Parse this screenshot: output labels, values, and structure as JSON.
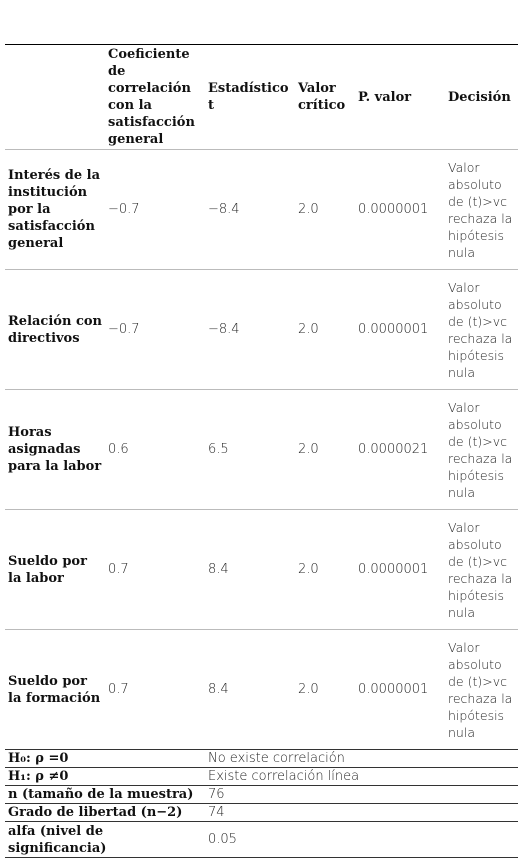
{
  "table": {
    "header": [
      "Coeficiente de correlación con la satisfacción general",
      "Estadístico t",
      "Valor crítico",
      "P. valor",
      "Decisión"
    ],
    "rows": [
      [
        "Interés de la institución por la satisfacción general",
        "−0.7",
        "−8.4",
        "2.0",
        "0.0000001",
        "Valor absoluto de (t)>vc rechaza la hipótesis nula"
      ],
      [
        "Relación con directivos",
        "−0.7",
        "−8.4",
        "2.0",
        "0.0000001",
        "Valor absoluto de (t)>vc rechaza la hipótesis nula"
      ],
      [
        "Horas asignadas para la labor",
        "0.6",
        "6.5",
        "2.0",
        "0.0000021",
        "Valor absoluto de (t)>vc rechaza la hipótesis nula"
      ],
      [
        "Sueldo por la labor",
        "0.7",
        "8.4",
        "2.0",
        "0.0000001",
        "Valor absoluto de (t)>vc rechaza la hipótesis nula"
      ],
      [
        "Sueldo por la formación",
        "0.7",
        "8.4",
        "2.0",
        "0.0000001",
        "Valor absoluto de (t)>vc rechaza la hipótesis nula"
      ]
    ],
    "footer": [
      [
        "H₀: ρ =0",
        "No existe correlación"
      ],
      [
        "H₁: ρ ≠0",
        "Existe correlación línea"
      ],
      [
        "n (tamaño de la muestra)",
        "76"
      ],
      [
        "Grado de libertad (n−2)",
        "74"
      ],
      [
        "alfa (nivel de significancia)",
        "0.05"
      ]
    ]
  }
}
